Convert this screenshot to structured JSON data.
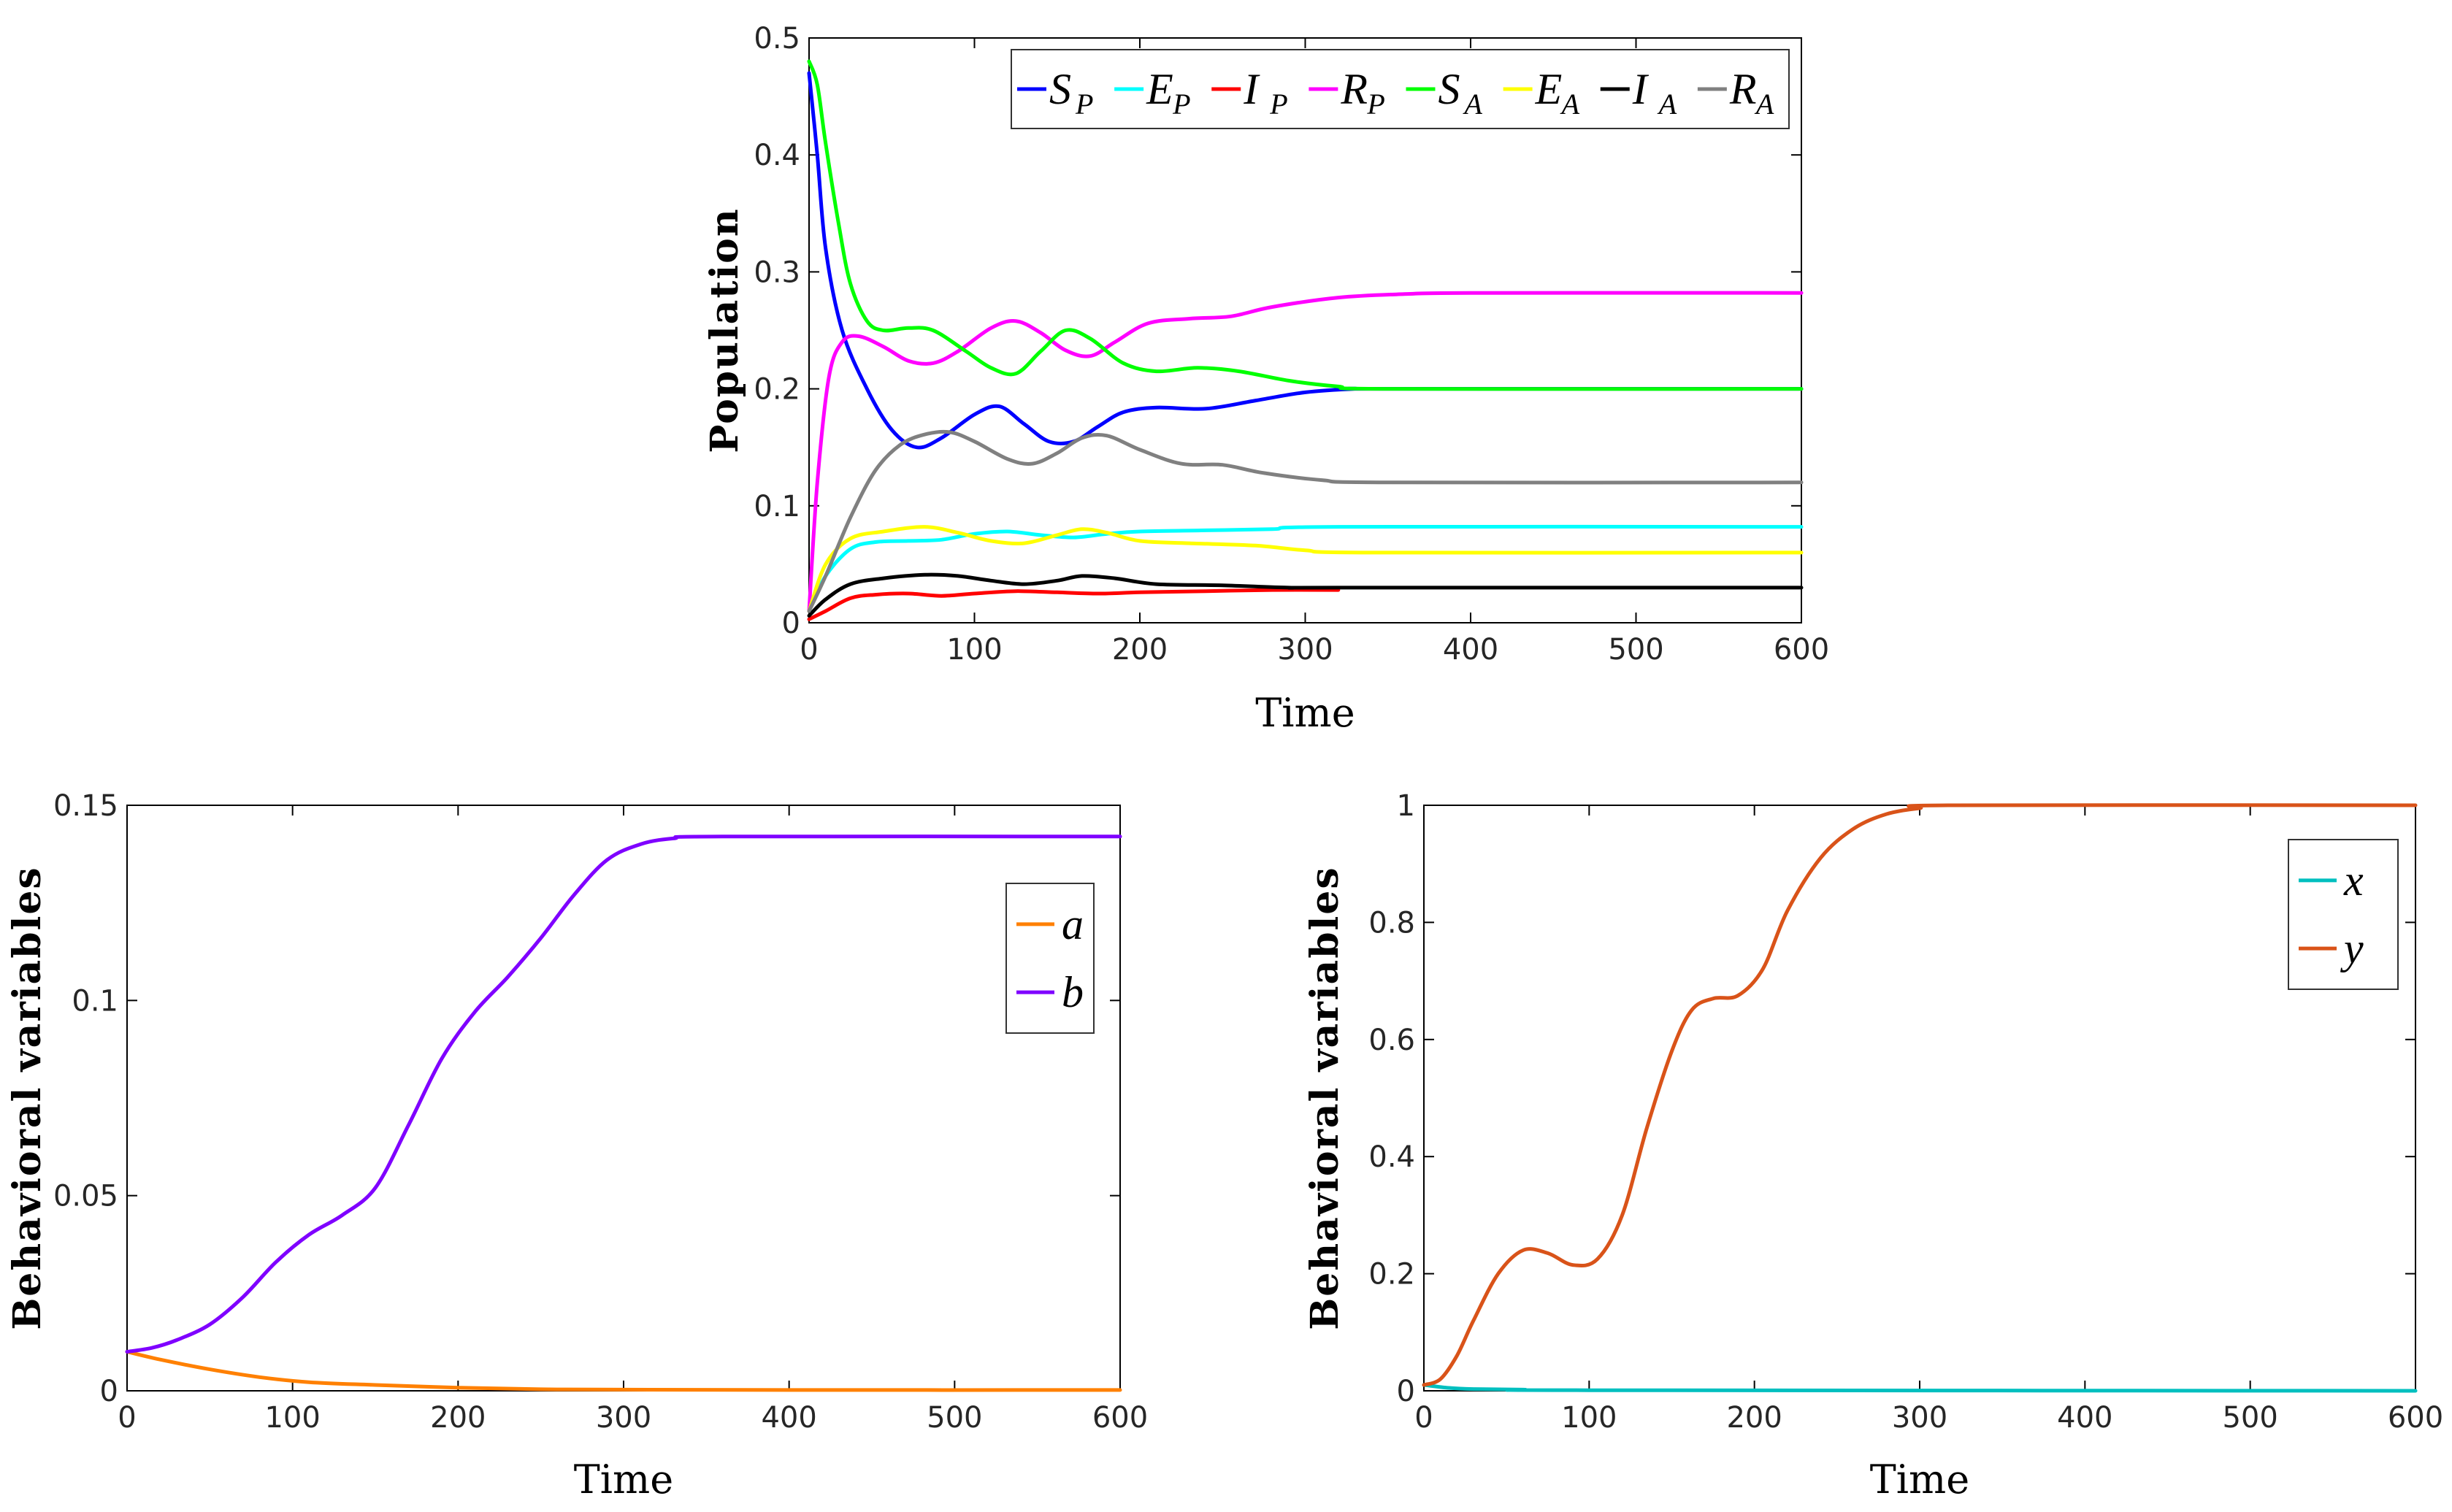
{
  "chart_data": [
    {
      "id": "population",
      "type": "line",
      "title": "",
      "xlabel": "Time",
      "ylabel": "Population",
      "xlim": [
        0,
        600
      ],
      "ylim": [
        0,
        0.5
      ],
      "xticks": [
        "0",
        "100",
        "200",
        "300",
        "400",
        "500",
        "600"
      ],
      "yticks": [
        "0",
        "0.1",
        "0.2",
        "0.3",
        "0.4",
        "0.5"
      ],
      "legend_position": "top-right",
      "series": [
        {
          "name": "S",
          "sub": "P",
          "color": "#0000ff",
          "points": [
            [
              0,
              0.47
            ],
            [
              5,
              0.4
            ],
            [
              10,
              0.32
            ],
            [
              20,
              0.25
            ],
            [
              35,
              0.2
            ],
            [
              50,
              0.165
            ],
            [
              65,
              0.15
            ],
            [
              80,
              0.158
            ],
            [
              100,
              0.178
            ],
            [
              115,
              0.185
            ],
            [
              130,
              0.17
            ],
            [
              145,
              0.155
            ],
            [
              160,
              0.155
            ],
            [
              175,
              0.168
            ],
            [
              190,
              0.18
            ],
            [
              210,
              0.184
            ],
            [
              240,
              0.183
            ],
            [
              270,
              0.19
            ],
            [
              300,
              0.197
            ],
            [
              330,
              0.2
            ],
            [
              350,
              0.2
            ],
            [
              600,
              0.2
            ]
          ]
        },
        {
          "name": "E",
          "sub": "P",
          "color": "#00ffff",
          "points": [
            [
              0,
              0.01
            ],
            [
              10,
              0.04
            ],
            [
              25,
              0.063
            ],
            [
              40,
              0.069
            ],
            [
              60,
              0.07
            ],
            [
              80,
              0.071
            ],
            [
              100,
              0.076
            ],
            [
              120,
              0.078
            ],
            [
              140,
              0.075
            ],
            [
              160,
              0.073
            ],
            [
              180,
              0.076
            ],
            [
              200,
              0.078
            ],
            [
              240,
              0.079
            ],
            [
              280,
              0.08
            ],
            [
              320,
              0.082
            ],
            [
              600,
              0.082
            ]
          ]
        },
        {
          "name": "I",
          "sub": "P",
          "color": "#ff0000",
          "points": [
            [
              0,
              0.003
            ],
            [
              10,
              0.01
            ],
            [
              25,
              0.021
            ],
            [
              40,
              0.024
            ],
            [
              60,
              0.025
            ],
            [
              80,
              0.023
            ],
            [
              100,
              0.025
            ],
            [
              125,
              0.027
            ],
            [
              150,
              0.026
            ],
            [
              175,
              0.025
            ],
            [
              200,
              0.026
            ],
            [
              240,
              0.027
            ],
            [
              280,
              0.028
            ],
            [
              320,
              0.028
            ]
          ]
        },
        {
          "name": "R",
          "sub": "P",
          "color": "#ff00ff",
          "points": [
            [
              0,
              0.01
            ],
            [
              5,
              0.12
            ],
            [
              12,
              0.21
            ],
            [
              20,
              0.24
            ],
            [
              30,
              0.245
            ],
            [
              45,
              0.236
            ],
            [
              60,
              0.224
            ],
            [
              75,
              0.222
            ],
            [
              90,
              0.232
            ],
            [
              110,
              0.252
            ],
            [
              125,
              0.258
            ],
            [
              140,
              0.248
            ],
            [
              155,
              0.233
            ],
            [
              170,
              0.228
            ],
            [
              185,
              0.24
            ],
            [
              205,
              0.256
            ],
            [
              230,
              0.26
            ],
            [
              255,
              0.262
            ],
            [
              280,
              0.27
            ],
            [
              320,
              0.278
            ],
            [
              360,
              0.281
            ],
            [
              400,
              0.282
            ],
            [
              600,
              0.282
            ]
          ]
        },
        {
          "name": "S",
          "sub": "A",
          "color": "#00ff00",
          "points": [
            [
              0,
              0.48
            ],
            [
              5,
              0.46
            ],
            [
              10,
              0.41
            ],
            [
              18,
              0.34
            ],
            [
              25,
              0.29
            ],
            [
              35,
              0.258
            ],
            [
              45,
              0.25
            ],
            [
              60,
              0.252
            ],
            [
              75,
              0.25
            ],
            [
              95,
              0.232
            ],
            [
              110,
              0.218
            ],
            [
              125,
              0.213
            ],
            [
              140,
              0.232
            ],
            [
              155,
              0.25
            ],
            [
              170,
              0.243
            ],
            [
              190,
              0.222
            ],
            [
              210,
              0.215
            ],
            [
              235,
              0.218
            ],
            [
              260,
              0.215
            ],
            [
              290,
              0.207
            ],
            [
              320,
              0.202
            ],
            [
              350,
              0.2
            ],
            [
              600,
              0.2
            ]
          ]
        },
        {
          "name": "E",
          "sub": "A",
          "color": "#ffff00",
          "points": [
            [
              0,
              0.01
            ],
            [
              10,
              0.05
            ],
            [
              25,
              0.072
            ],
            [
              45,
              0.078
            ],
            [
              70,
              0.082
            ],
            [
              90,
              0.077
            ],
            [
              110,
              0.07
            ],
            [
              130,
              0.068
            ],
            [
              150,
              0.075
            ],
            [
              165,
              0.08
            ],
            [
              180,
              0.077
            ],
            [
              200,
              0.07
            ],
            [
              230,
              0.068
            ],
            [
              270,
              0.066
            ],
            [
              300,
              0.062
            ],
            [
              340,
              0.06
            ],
            [
              600,
              0.06
            ]
          ]
        },
        {
          "name": "I",
          "sub": "A",
          "color": "#000000",
          "points": [
            [
              0,
              0.006
            ],
            [
              10,
              0.02
            ],
            [
              25,
              0.033
            ],
            [
              45,
              0.038
            ],
            [
              70,
              0.041
            ],
            [
              90,
              0.04
            ],
            [
              110,
              0.036
            ],
            [
              130,
              0.033
            ],
            [
              150,
              0.036
            ],
            [
              165,
              0.04
            ],
            [
              185,
              0.038
            ],
            [
              210,
              0.033
            ],
            [
              250,
              0.032
            ],
            [
              290,
              0.03
            ],
            [
              320,
              0.03
            ],
            [
              600,
              0.03
            ]
          ]
        },
        {
          "name": "R",
          "sub": "A",
          "color": "#808080",
          "points": [
            [
              0,
              0.01
            ],
            [
              10,
              0.04
            ],
            [
              25,
              0.09
            ],
            [
              40,
              0.13
            ],
            [
              55,
              0.152
            ],
            [
              70,
              0.161
            ],
            [
              85,
              0.163
            ],
            [
              100,
              0.155
            ],
            [
              120,
              0.14
            ],
            [
              135,
              0.136
            ],
            [
              150,
              0.145
            ],
            [
              165,
              0.158
            ],
            [
              180,
              0.16
            ],
            [
              200,
              0.148
            ],
            [
              225,
              0.136
            ],
            [
              250,
              0.135
            ],
            [
              275,
              0.128
            ],
            [
              310,
              0.122
            ],
            [
              350,
              0.12
            ],
            [
              600,
              0.12
            ]
          ]
        }
      ]
    },
    {
      "id": "behavior-ab",
      "type": "line",
      "title": "",
      "xlabel": "Time",
      "ylabel": "Behavioral variables",
      "xlim": [
        0,
        600
      ],
      "ylim": [
        0,
        0.15
      ],
      "xticks": [
        "0",
        "100",
        "200",
        "300",
        "400",
        "500",
        "600"
      ],
      "yticks": [
        "0",
        "0.05",
        "0.1",
        "0.15"
      ],
      "legend_position": "top-right",
      "series": [
        {
          "name": "a",
          "color": "#ff8000",
          "points": [
            [
              0,
              0.01
            ],
            [
              20,
              0.008
            ],
            [
              50,
              0.0055
            ],
            [
              80,
              0.0035
            ],
            [
              110,
              0.0022
            ],
            [
              150,
              0.0015
            ],
            [
              200,
              0.0008
            ],
            [
              250,
              0.0004
            ],
            [
              300,
              0.0003
            ],
            [
              400,
              0.0002
            ],
            [
              600,
              0.0002
            ]
          ]
        },
        {
          "name": "b",
          "color": "#7f00ff",
          "points": [
            [
              0,
              0.01
            ],
            [
              15,
              0.011
            ],
            [
              30,
              0.013
            ],
            [
              50,
              0.017
            ],
            [
              70,
              0.024
            ],
            [
              90,
              0.033
            ],
            [
              110,
              0.04
            ],
            [
              130,
              0.045
            ],
            [
              150,
              0.052
            ],
            [
              170,
              0.068
            ],
            [
              190,
              0.085
            ],
            [
              210,
              0.097
            ],
            [
              230,
              0.106
            ],
            [
              250,
              0.116
            ],
            [
              270,
              0.127
            ],
            [
              290,
              0.136
            ],
            [
              310,
              0.14
            ],
            [
              330,
              0.1415
            ],
            [
              360,
              0.142
            ],
            [
              600,
              0.142
            ]
          ]
        }
      ]
    },
    {
      "id": "behavior-xy",
      "type": "line",
      "title": "",
      "xlabel": "Time",
      "ylabel": "Behavioral variables",
      "xlim": [
        0,
        600
      ],
      "ylim": [
        0,
        1
      ],
      "xticks": [
        "0",
        "100",
        "200",
        "300",
        "400",
        "500",
        "600"
      ],
      "yticks": [
        "0",
        "0.2",
        "0.4",
        "0.6",
        "0.8",
        "1"
      ],
      "legend_position": "top-right",
      "series": [
        {
          "name": "x",
          "color": "#00bfbf",
          "points": [
            [
              0,
              0.01
            ],
            [
              15,
              0.005
            ],
            [
              30,
              0.003
            ],
            [
              60,
              0.002
            ],
            [
              100,
              0.001
            ],
            [
              600,
              0.0
            ]
          ]
        },
        {
          "name": "y",
          "color": "#d95319",
          "points": [
            [
              0,
              0.01
            ],
            [
              10,
              0.02
            ],
            [
              20,
              0.06
            ],
            [
              30,
              0.12
            ],
            [
              45,
              0.2
            ],
            [
              60,
              0.24
            ],
            [
              75,
              0.235
            ],
            [
              90,
              0.215
            ],
            [
              105,
              0.225
            ],
            [
              120,
              0.3
            ],
            [
              135,
              0.45
            ],
            [
              150,
              0.58
            ],
            [
              162,
              0.65
            ],
            [
              175,
              0.67
            ],
            [
              190,
              0.675
            ],
            [
              205,
              0.72
            ],
            [
              220,
              0.82
            ],
            [
              240,
              0.91
            ],
            [
              260,
              0.96
            ],
            [
              280,
              0.985
            ],
            [
              300,
              0.995
            ],
            [
              320,
              1.0
            ],
            [
              600,
              1.0
            ]
          ]
        }
      ]
    }
  ]
}
